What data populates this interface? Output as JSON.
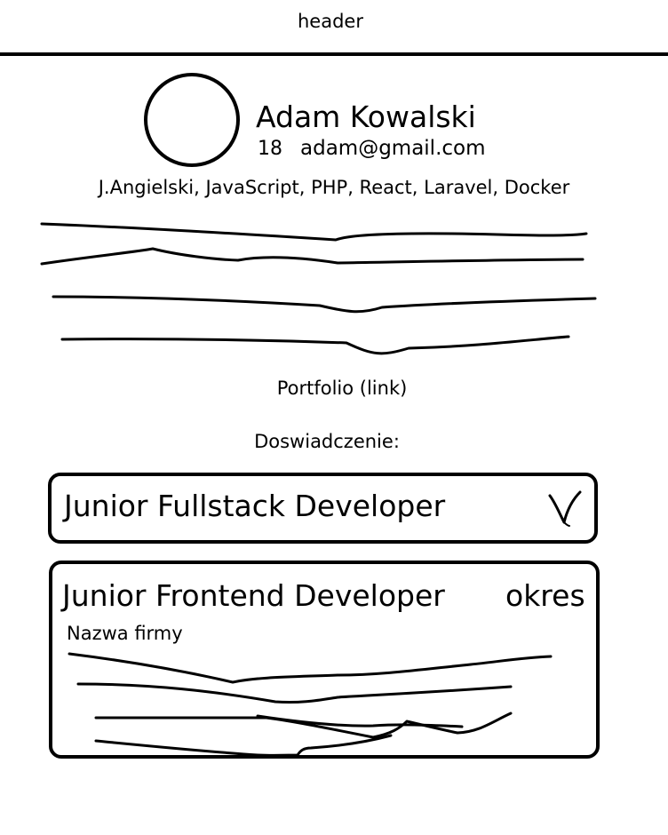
{
  "header": {
    "title": "header"
  },
  "profile": {
    "name": "Adam Kowalski",
    "age": "18",
    "email": "adam@gmail.com",
    "skills": "J.Angielski, JavaScript, PHP, React, Laravel, Docker"
  },
  "portfolio": {
    "label": "Portfolio (link)"
  },
  "experience": {
    "heading": "Doswiadczenie:",
    "items": [
      {
        "title": "Junior Fullstack Developer",
        "state": "collapsed",
        "toggle_icon": "chevron-down-icon"
      },
      {
        "title": "Junior Frontend Developer",
        "period": "okres",
        "company": "Nazwa firmy",
        "state": "expanded"
      }
    ]
  }
}
